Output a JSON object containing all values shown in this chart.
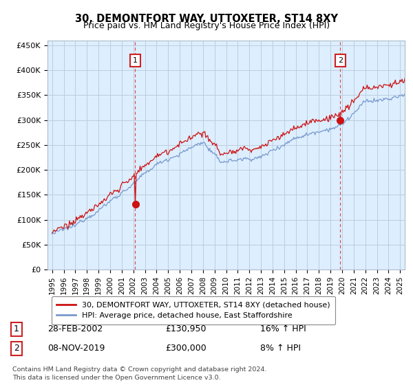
{
  "title": "30, DEMONTFORT WAY, UTTOXETER, ST14 8XY",
  "subtitle": "Price paid vs. HM Land Registry's House Price Index (HPI)",
  "ylabel_ticks": [
    "£0",
    "£50K",
    "£100K",
    "£150K",
    "£200K",
    "£250K",
    "£300K",
    "£350K",
    "£400K",
    "£450K"
  ],
  "ytick_values": [
    0,
    50000,
    100000,
    150000,
    200000,
    250000,
    300000,
    350000,
    400000,
    450000
  ],
  "ylim": [
    0,
    460000
  ],
  "xlim_start": 1994.6,
  "xlim_end": 2025.4,
  "hpi_color": "#7799cc",
  "price_color": "#cc1111",
  "chart_bg": "#ddeeff",
  "marker1_date": 2002.15,
  "marker1_price": 130950,
  "marker1_label": "1",
  "marker2_date": 2019.85,
  "marker2_price": 300000,
  "marker2_label": "2",
  "legend_line1": "30, DEMONTFORT WAY, UTTOXETER, ST14 8XY (detached house)",
  "legend_line2": "HPI: Average price, detached house, East Staffordshire",
  "table_row1": [
    "1",
    "28-FEB-2002",
    "£130,950",
    "16% ↑ HPI"
  ],
  "table_row2": [
    "2",
    "08-NOV-2019",
    "£300,000",
    "8% ↑ HPI"
  ],
  "footer": "Contains HM Land Registry data © Crown copyright and database right 2024.\nThis data is licensed under the Open Government Licence v3.0.",
  "background_color": "#ffffff",
  "grid_color": "#bbccdd"
}
